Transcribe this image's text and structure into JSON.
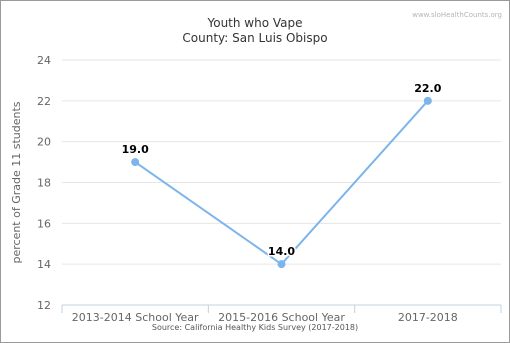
{
  "chart_data": {
    "type": "line",
    "title": "Youth who Vape",
    "subtitle": "County: San Luis Obispo",
    "credit": "www.sloHealthCounts.org",
    "source": "Source: California Healthy Kids Survey (2017-2018)",
    "ylabel": "percent of Grade 11 students",
    "xlabel": "",
    "categories": [
      "2013-2014 School Year",
      "2015-2016 School Year",
      "2017-2018"
    ],
    "series": [
      {
        "values": [
          19.0,
          14.0,
          22.0
        ],
        "data_labels": [
          "19.0",
          "14.0",
          "22.0"
        ]
      }
    ],
    "ylim": [
      12,
      24
    ],
    "yticks": [
      12,
      14,
      16,
      18,
      20,
      22,
      24
    ],
    "grid": true,
    "legend": "none",
    "colors": {
      "line": "#7cb5ec",
      "grid": "#e6e6e6",
      "axis": "#c0d0e0",
      "tick_label": "#666666"
    }
  }
}
